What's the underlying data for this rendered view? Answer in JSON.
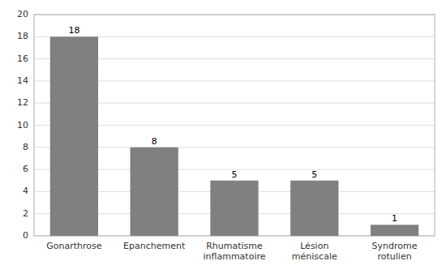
{
  "chart_data": {
    "type": "bar",
    "categories": [
      "Gonarthrose",
      "Epanchement",
      "Rhumatisme\ninflammatoire",
      "Lésion\nméniscale",
      "Syndrome\nrotulien"
    ],
    "values": [
      18,
      8,
      5,
      5,
      1
    ],
    "color": "#808080",
    "ylim": [
      0,
      20
    ],
    "yticks": [
      0,
      2,
      4,
      6,
      8,
      10,
      12,
      14,
      16,
      18,
      20
    ],
    "grid": true,
    "data_labels": true
  }
}
